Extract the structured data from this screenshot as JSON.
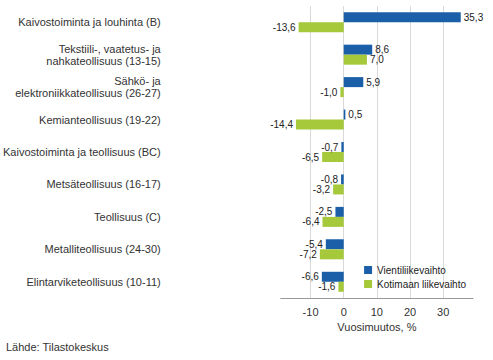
{
  "chart_data": {
    "type": "bar",
    "orientation": "horizontal",
    "categories": [
      "Kaivostoiminta ja louhinta (B)",
      "Tekstiili-, vaatetus- ja\nnahkateollisuus (13-15)",
      "Sähkö- ja\nelektroniikkateollisuus (26-27)",
      "Kemianteollisuus (19-22)",
      "Kaivostoiminta ja teollisuus (BC)",
      "Metsäteollisuus (16-17)",
      "Teollisuus (C)",
      "Metalliteollisuus (24-30)",
      "Elintarviketeollisuus (10-11)"
    ],
    "series": [
      {
        "name": "Vientiliikevaihto",
        "color": "#1a5fa8",
        "values": [
          35.3,
          8.6,
          5.9,
          0.5,
          -0.7,
          -0.8,
          -2.5,
          -5.4,
          -6.6
        ],
        "value_labels": [
          "35,3",
          "8,6",
          "5,9",
          "0,5",
          "-0,7",
          "-0,8",
          "-2,5",
          "-5,4",
          "-6,6"
        ]
      },
      {
        "name": "Kotimaan liikevaihto",
        "color": "#a5c93a",
        "values": [
          -13.6,
          7.0,
          -1.0,
          -14.4,
          -6.5,
          -3.2,
          -6.4,
          -7.2,
          -1.6
        ],
        "value_labels": [
          "-13,6",
          "7,0",
          "-1,0",
          "-14,4",
          "-6,5",
          "-3,2",
          "-6,4",
          "-7,2",
          "-1,6"
        ]
      }
    ],
    "xlabel": "Vuosimuutos, %",
    "xlim": [
      -19,
      39
    ],
    "xticks": [
      -10,
      0,
      10,
      20,
      30
    ],
    "grid": true,
    "legend": "lower right",
    "data_labels": true,
    "annotations": [
      "Lähde: Tilastokeskus"
    ]
  }
}
